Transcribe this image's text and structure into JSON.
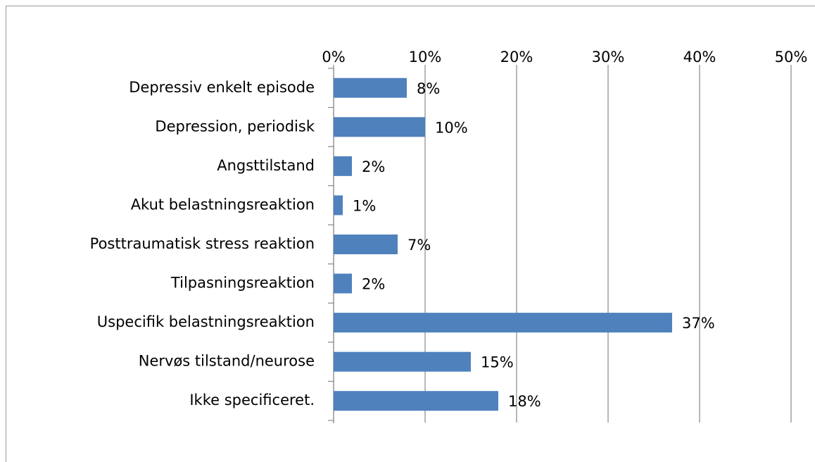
{
  "chart_data": {
    "type": "bar",
    "orientation": "horizontal",
    "categories": [
      "Depressiv enkelt episode",
      "Depression, periodisk",
      "Angsttilstand",
      "Akut belastningsreaktion",
      "Posttraumatisk stress reaktion",
      "Tilpasningsreaktion",
      "Uspecifik belastningsreaktion",
      "Nervøs tilstand/neurose",
      "Ikke specificeret."
    ],
    "values": [
      8,
      10,
      2,
      1,
      7,
      2,
      37,
      15,
      18
    ],
    "value_labels": [
      "8%",
      "10%",
      "2%",
      "1%",
      "7%",
      "2%",
      "37%",
      "15%",
      "18%"
    ],
    "color": "#4f81bd",
    "xlim": [
      0,
      50
    ],
    "xticks": [
      {
        "value": 0,
        "label": "0%"
      },
      {
        "value": 10,
        "label": "10%"
      },
      {
        "value": 20,
        "label": "20%"
      },
      {
        "value": 30,
        "label": "30%"
      },
      {
        "value": 40,
        "label": "40%"
      },
      {
        "value": 50,
        "label": "50%"
      }
    ],
    "grid": true
  }
}
